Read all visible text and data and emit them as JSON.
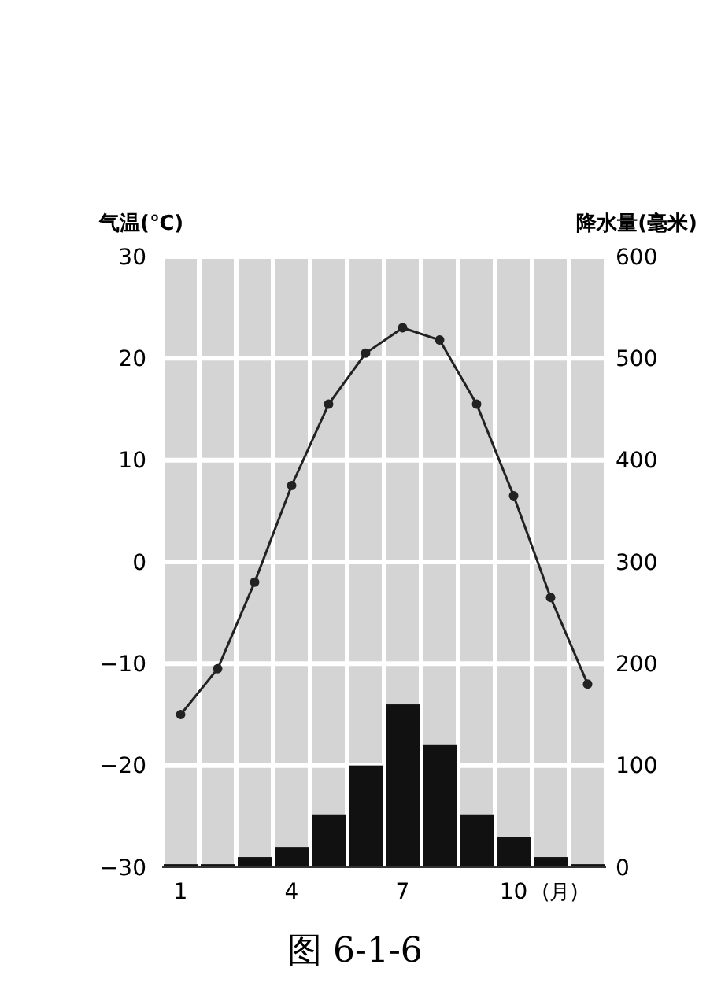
{
  "chart_data": {
    "type": "line",
    "categories": [
      "1",
      null,
      null,
      "4",
      null,
      null,
      "7",
      null,
      null,
      "10",
      null,
      null
    ],
    "xlabel": "(月)",
    "ylabel": "气温(℃)",
    "y2label": "降水量(毫米)",
    "series": [
      {
        "type": "bar",
        "axis": "y2",
        "color": "#111111",
        "values": [
          3,
          3,
          10,
          20,
          52,
          100,
          160,
          120,
          52,
          30,
          10,
          3
        ]
      },
      {
        "color": "#222222",
        "values": [
          -15,
          -10.5,
          -2,
          7.5,
          15.5,
          20.5,
          23,
          21.8,
          15.5,
          6.5,
          -3.5,
          -12
        ]
      }
    ],
    "ylim": [
      -30,
      30
    ],
    "yticks": [
      -30,
      -20,
      -10,
      0,
      10,
      20,
      30
    ],
    "y2lim": [
      0,
      600
    ],
    "y2ticks": [
      0,
      100,
      200,
      300,
      400,
      500,
      600
    ],
    "grid": true,
    "marker": "circle",
    "line_style": "solid",
    "annotations": [
      "图 6-1-6"
    ]
  }
}
